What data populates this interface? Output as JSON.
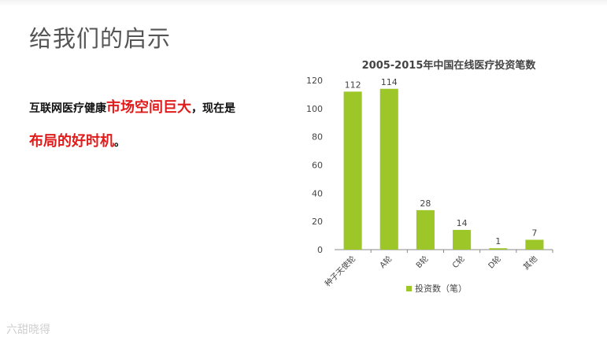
{
  "slide": {
    "title": "给我们的启示",
    "text_parts": [
      {
        "text": "互联网医疗健康",
        "style": "normal"
      },
      {
        "text": "市场空间巨大",
        "style": "highlight"
      },
      {
        "text": "，现在是",
        "style": "normal"
      },
      {
        "text": "布局的好时机",
        "style": "highlight"
      },
      {
        "text": "。",
        "style": "normal"
      }
    ],
    "watermark": "六甜晓得"
  },
  "colors": {
    "bar": "#9dc728",
    "highlight_text": "#e01b1b",
    "axis": "#888888",
    "title_gray": "#555555"
  },
  "chart_data": {
    "type": "bar",
    "title": "2005-2015年中国在线医疗投资笔数",
    "categories": [
      "种子天使轮",
      "A轮",
      "B轮",
      "C轮",
      "D轮",
      "其他"
    ],
    "series": [
      {
        "name": "投资数（笔）",
        "values": [
          112,
          114,
          28,
          14,
          1,
          7
        ]
      }
    ],
    "ylim": [
      0,
      120
    ],
    "yticks": [
      0,
      20,
      40,
      60,
      80,
      100,
      120
    ],
    "legend_position": "bottom",
    "grid": false
  }
}
